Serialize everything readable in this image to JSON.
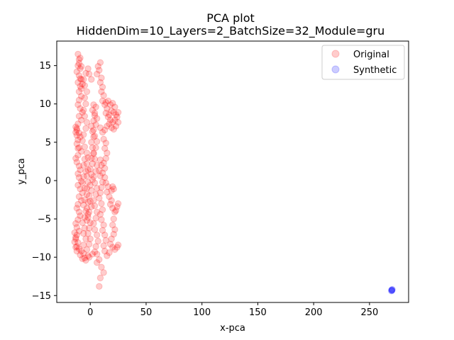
{
  "chart_data": {
    "type": "scatter",
    "title": "PCA plot",
    "subtitle": "HiddenDim=10_Layers=2_BatchSize=32_Module=gru",
    "xlabel": "x-pca",
    "ylabel": "y_pca",
    "xlim": [
      -30,
      285
    ],
    "ylim": [
      -15.9,
      18.2
    ],
    "xticks": [
      0,
      50,
      100,
      150,
      200,
      250
    ],
    "yticks": [
      -15,
      -10,
      -5,
      0,
      5,
      10,
      15
    ],
    "grid": false,
    "legend_position": "top-right",
    "series": [
      {
        "name": "Original",
        "color": "#ff0000",
        "points": [
          [
            -11,
            16.5
          ],
          [
            -10,
            15.8
          ],
          [
            -11,
            15.0
          ],
          [
            -9,
            14.6
          ],
          [
            -12,
            14.2
          ],
          [
            -10,
            13.7
          ],
          [
            -8,
            13.2
          ],
          [
            -11,
            12.8
          ],
          [
            -9,
            12.3
          ],
          [
            -10,
            11.6
          ],
          [
            -8,
            11.0
          ],
          [
            -10,
            10.5
          ],
          [
            -11,
            9.9
          ],
          [
            -9,
            9.4
          ],
          [
            -7,
            8.9
          ],
          [
            -10,
            8.4
          ],
          [
            -8,
            7.9
          ],
          [
            -11,
            7.4
          ],
          [
            -13,
            7.0
          ],
          [
            -12,
            6.6
          ],
          [
            -10,
            6.2
          ],
          [
            -9,
            5.7
          ],
          [
            -11,
            5.3
          ],
          [
            -12,
            4.8
          ],
          [
            -10,
            4.3
          ],
          [
            -8,
            3.8
          ],
          [
            -11,
            3.3
          ],
          [
            -13,
            2.9
          ],
          [
            -12,
            2.4
          ],
          [
            -10,
            1.9
          ],
          [
            -9,
            1.4
          ],
          [
            -11,
            0.9
          ],
          [
            -10,
            0.4
          ],
          [
            -8,
            -0.1
          ],
          [
            -11,
            -0.6
          ],
          [
            -9,
            -1.1
          ],
          [
            -7,
            -1.6
          ],
          [
            -10,
            -2.1
          ],
          [
            -8,
            -2.6
          ],
          [
            -11,
            -3.1
          ],
          [
            -12,
            -3.6
          ],
          [
            -10,
            -4.1
          ],
          [
            -9,
            -4.6
          ],
          [
            -11,
            -5.1
          ],
          [
            -13,
            -5.6
          ],
          [
            -12,
            -6.1
          ],
          [
            -10,
            -6.6
          ],
          [
            -12,
            -7.1
          ],
          [
            -13,
            -7.6
          ],
          [
            -11,
            -8.1
          ],
          [
            -12,
            -8.6
          ],
          [
            -10,
            -8.9
          ],
          [
            -8,
            -9.2
          ],
          [
            -6,
            -9.5
          ],
          [
            -5,
            -10.1
          ],
          [
            -4,
            -10.4
          ],
          [
            -2,
            -9.8
          ],
          [
            -6,
            -8.4
          ],
          [
            -4,
            -7.6
          ],
          [
            -6,
            -6.9
          ],
          [
            -5,
            -6.2
          ],
          [
            -7,
            -5.5
          ],
          [
            -5,
            -4.8
          ],
          [
            -4,
            -4.0
          ],
          [
            -6,
            -3.2
          ],
          [
            -5,
            -2.5
          ],
          [
            -3,
            -1.8
          ],
          [
            -5,
            -1.0
          ],
          [
            -7,
            -0.3
          ],
          [
            -6,
            0.5
          ],
          [
            -4,
            1.2
          ],
          [
            -6,
            2.0
          ],
          [
            -5,
            2.8
          ],
          [
            -3,
            3.6
          ],
          [
            -5,
            4.4
          ],
          [
            -7,
            5.2
          ],
          [
            -6,
            6.0
          ],
          [
            -4,
            6.8
          ],
          [
            -3,
            7.6
          ],
          [
            -5,
            8.4
          ],
          [
            -6,
            9.2
          ],
          [
            -4,
            10.0
          ],
          [
            -5,
            10.8
          ],
          [
            -3,
            11.6
          ],
          [
            -5,
            12.4
          ],
          [
            -6,
            13.2
          ],
          [
            -4,
            14.0
          ],
          [
            -2,
            14.6
          ],
          [
            -1,
            13.9
          ],
          [
            1,
            13.2
          ],
          [
            -3,
            -9.0
          ],
          [
            -1,
            -8.3
          ],
          [
            0,
            -7.6
          ],
          [
            -2,
            -6.9
          ],
          [
            -1,
            -6.2
          ],
          [
            0,
            -5.5
          ],
          [
            -2,
            -4.8
          ],
          [
            -1,
            -4.1
          ],
          [
            1,
            -3.4
          ],
          [
            0,
            -2.7
          ],
          [
            -1,
            -2.0
          ],
          [
            1,
            -1.3
          ],
          [
            0,
            -0.6
          ],
          [
            2,
            0.1
          ],
          [
            1,
            0.8
          ],
          [
            0,
            1.5
          ],
          [
            2,
            2.2
          ],
          [
            1,
            2.9
          ],
          [
            3,
            3.6
          ],
          [
            2,
            4.3
          ],
          [
            1,
            5.0
          ],
          [
            3,
            5.7
          ],
          [
            2,
            6.4
          ],
          [
            1,
            7.1
          ],
          [
            3,
            7.8
          ],
          [
            4,
            8.5
          ],
          [
            2,
            9.2
          ],
          [
            3,
            9.9
          ],
          [
            5,
            9.6
          ],
          [
            4,
            8.8
          ],
          [
            6,
            8.1
          ],
          [
            5,
            7.3
          ],
          [
            3,
            6.6
          ],
          [
            4,
            5.8
          ],
          [
            6,
            5.1
          ],
          [
            5,
            4.3
          ],
          [
            3,
            3.5
          ],
          [
            4,
            2.8
          ],
          [
            6,
            2.0
          ],
          [
            5,
            1.2
          ],
          [
            3,
            0.5
          ],
          [
            4,
            -0.3
          ],
          [
            6,
            -1.0
          ],
          [
            5,
            -1.8
          ],
          [
            3,
            -2.6
          ],
          [
            4,
            -3.3
          ],
          [
            6,
            -4.1
          ],
          [
            5,
            -4.9
          ],
          [
            3,
            -5.6
          ],
          [
            4,
            -6.4
          ],
          [
            6,
            -7.1
          ],
          [
            7,
            -7.9
          ],
          [
            5,
            -8.6
          ],
          [
            4,
            -9.3
          ],
          [
            6,
            -9.6
          ],
          [
            8,
            -10.3
          ],
          [
            10,
            -11.3
          ],
          [
            12,
            -12.0
          ],
          [
            9,
            -12.7
          ],
          [
            8,
            -13.8
          ],
          [
            7,
            14.9
          ],
          [
            9,
            15.4
          ],
          [
            8,
            14.4
          ],
          [
            6,
            13.9
          ],
          [
            10,
            13.4
          ],
          [
            9,
            12.8
          ],
          [
            11,
            12.2
          ],
          [
            10,
            11.6
          ],
          [
            12,
            11.1
          ],
          [
            11,
            10.4
          ],
          [
            13,
            9.9
          ],
          [
            15,
            9.4
          ],
          [
            14,
            8.8
          ],
          [
            16,
            8.3
          ],
          [
            18,
            7.9
          ],
          [
            20,
            7.6
          ],
          [
            22,
            7.9
          ],
          [
            24,
            8.3
          ],
          [
            25,
            7.6
          ],
          [
            23,
            7.1
          ],
          [
            21,
            6.7
          ],
          [
            19,
            6.9
          ],
          [
            17,
            7.4
          ],
          [
            15,
            7.1
          ],
          [
            13,
            6.6
          ],
          [
            11,
            6.3
          ],
          [
            9,
            6.9
          ],
          [
            14,
            10.2
          ],
          [
            16,
            10.4
          ],
          [
            18,
            9.9
          ],
          [
            20,
            10.1
          ],
          [
            22,
            9.6
          ],
          [
            19,
            9.1
          ],
          [
            17,
            8.6
          ],
          [
            21,
            8.9
          ],
          [
            23,
            8.6
          ],
          [
            25,
            8.9
          ],
          [
            12,
            5.4
          ],
          [
            14,
            4.9
          ],
          [
            13,
            4.2
          ],
          [
            15,
            3.6
          ],
          [
            14,
            2.9
          ],
          [
            12,
            2.3
          ],
          [
            13,
            1.6
          ],
          [
            11,
            1.0
          ],
          [
            13,
            0.4
          ],
          [
            14,
            -0.3
          ],
          [
            16,
            -0.8
          ],
          [
            15,
            -1.5
          ],
          [
            17,
            -2.1
          ],
          [
            19,
            -1.3
          ],
          [
            20,
            -0.8
          ],
          [
            21,
            -1.1
          ],
          [
            19,
            -2.6
          ],
          [
            18,
            -3.1
          ],
          [
            20,
            -3.6
          ],
          [
            22,
            -4.1
          ],
          [
            24,
            -3.4
          ],
          [
            25,
            -3.0
          ],
          [
            23,
            -3.9
          ],
          [
            21,
            -5.0
          ],
          [
            20,
            -5.8
          ],
          [
            22,
            -6.4
          ],
          [
            21,
            -7.0
          ],
          [
            19,
            -7.6
          ],
          [
            18,
            -8.3
          ],
          [
            20,
            -8.7
          ],
          [
            22,
            -9.0
          ],
          [
            24,
            -8.7
          ],
          [
            25,
            -8.4
          ],
          [
            17,
            -9.4
          ],
          [
            15,
            -9.8
          ],
          [
            13,
            -9.2
          ],
          [
            12,
            -8.5
          ],
          [
            14,
            -7.8
          ],
          [
            13,
            -7.1
          ],
          [
            11,
            -6.5
          ],
          [
            12,
            -5.8
          ],
          [
            10,
            -5.1
          ],
          [
            9,
            -4.4
          ],
          [
            11,
            -3.8
          ],
          [
            10,
            -3.0
          ],
          [
            8,
            -2.3
          ],
          [
            9,
            -1.6
          ],
          [
            10,
            -0.9
          ],
          [
            11,
            -0.2
          ],
          [
            9,
            0.6
          ],
          [
            8,
            1.3
          ],
          [
            10,
            2.0
          ],
          [
            9,
            2.7
          ],
          [
            -14,
            -6.8
          ],
          [
            -13,
            -7.4
          ],
          [
            -14,
            -8.0
          ],
          [
            -13,
            -8.7
          ],
          [
            -12,
            -9.2
          ],
          [
            -9,
            -9.7
          ],
          [
            -7,
            -10.2
          ],
          [
            -1,
            -10.0
          ],
          [
            2,
            -9.6
          ],
          [
            6,
            -10.7
          ],
          [
            -8,
            12.0
          ],
          [
            -7,
            12.6
          ],
          [
            -9,
            13.3
          ],
          [
            -8,
            14.9
          ],
          [
            -10,
            15.3
          ],
          [
            -9,
            16.0
          ],
          [
            -12,
            6.8
          ],
          [
            -13,
            6.3
          ],
          [
            -12,
            5.9
          ],
          [
            -11,
            4.2
          ],
          [
            -2,
            3.0
          ],
          [
            -3,
            2.2
          ],
          [
            -2,
            1.4
          ],
          [
            -3,
            0.6
          ],
          [
            -2,
            -0.2
          ],
          [
            -3,
            -1.0
          ],
          [
            -2,
            -2.8
          ],
          [
            -3,
            -3.6
          ],
          [
            -2,
            -4.4
          ],
          [
            -3,
            -5.2
          ]
        ]
      },
      {
        "name": "Synthetic",
        "color": "#0000ff",
        "points": [
          [
            270,
            -14.3
          ],
          [
            270.4,
            -14.2
          ],
          [
            269.6,
            -14.4
          ],
          [
            270.2,
            -14.35
          ],
          [
            269.8,
            -14.25
          ]
        ]
      }
    ]
  }
}
